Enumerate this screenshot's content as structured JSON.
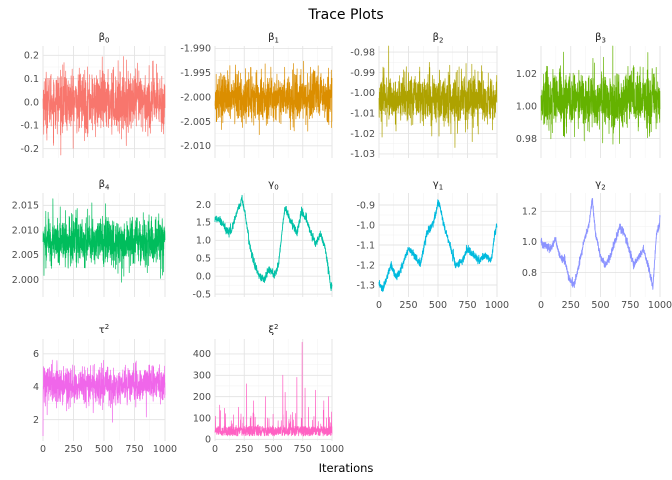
{
  "figure": {
    "title": "Trace Plots",
    "xlabel": "Iterations"
  },
  "chart_data": [
    {
      "type": "line",
      "param": "b0",
      "strip": {
        "base": "β",
        "sub": "0"
      },
      "color": "#F8766D",
      "xlim": [
        0,
        1000
      ],
      "ylim": [
        -0.24,
        0.24
      ],
      "yticks": [
        "0.2",
        "0.1",
        "0.0",
        "-0.1",
        "-0.2"
      ],
      "ytick_values": [
        0.2,
        0.1,
        0.0,
        -0.1,
        -0.2
      ],
      "xticks": [],
      "xtick_values": [
        0,
        250,
        500,
        750,
        1000
      ],
      "approx_mean": 0.0,
      "approx_sd": 0.065,
      "n": 1000
    },
    {
      "type": "line",
      "param": "b1",
      "strip": {
        "base": "β",
        "sub": "1"
      },
      "color": "#DB8E00",
      "xlim": [
        0,
        1000
      ],
      "ylim": [
        -2.0125,
        -1.9895
      ],
      "yticks": [
        "-1.990",
        "-1.995",
        "-2.000",
        "-2.005",
        "-2.010"
      ],
      "ytick_values": [
        -1.99,
        -1.995,
        -2.0,
        -2.005,
        -2.01
      ],
      "xticks": [],
      "xtick_values": [
        0,
        250,
        500,
        750,
        1000
      ],
      "approx_mean": -2.0,
      "approx_sd": 0.0025,
      "n": 1000
    },
    {
      "type": "line",
      "param": "b2",
      "strip": {
        "base": "β",
        "sub": "2"
      },
      "color": "#AEA200",
      "xlim": [
        0,
        1000
      ],
      "ylim": [
        -1.032,
        -0.977
      ],
      "yticks": [
        "-0.98",
        "-0.99",
        "-1.00",
        "-1.01",
        "-1.02",
        "-1.03"
      ],
      "ytick_values": [
        -0.98,
        -0.99,
        -1.0,
        -1.01,
        -1.02,
        -1.03
      ],
      "xticks": [],
      "xtick_values": [
        0,
        250,
        500,
        750,
        1000
      ],
      "approx_mean": -1.003,
      "approx_sd": 0.006,
      "n": 1000
    },
    {
      "type": "line",
      "param": "b3",
      "strip": {
        "base": "β",
        "sub": "3"
      },
      "color": "#64B200",
      "xlim": [
        0,
        1000
      ],
      "ylim": [
        0.968,
        1.037
      ],
      "yticks": [
        "1.02",
        "1.00",
        "0.98"
      ],
      "ytick_values": [
        1.02,
        1.0,
        0.98
      ],
      "xticks": [],
      "xtick_values": [
        0,
        250,
        500,
        750,
        1000
      ],
      "approx_mean": 1.003,
      "approx_sd": 0.009,
      "n": 1000
    },
    {
      "type": "line",
      "param": "b4",
      "strip": {
        "base": "β",
        "sub": "4"
      },
      "color": "#00BD5C",
      "xlim": [
        0,
        1000
      ],
      "ylim": [
        1.9965,
        2.0175
      ],
      "yticks": [
        "2.015",
        "2.010",
        "2.005",
        "2.000"
      ],
      "ytick_values": [
        2.015,
        2.01,
        2.005,
        2.0
      ],
      "xticks": [],
      "xtick_values": [
        0,
        250,
        500,
        750,
        1000
      ],
      "approx_mean": 2.0078,
      "approx_sd": 0.0025,
      "n": 1000
    },
    {
      "type": "line",
      "param": "g0",
      "strip": {
        "base": "γ",
        "sub": "0"
      },
      "color": "#00C1A7",
      "xlim": [
        0,
        1000
      ],
      "ylim": [
        -0.58,
        2.32
      ],
      "yticks": [
        "2.0",
        "1.5",
        "1.0",
        "0.5",
        "0.0",
        "-0.5"
      ],
      "ytick_values": [
        2.0,
        1.5,
        1.0,
        0.5,
        0.0,
        -0.5
      ],
      "xticks": [],
      "xtick_values": [
        0,
        250,
        500,
        750,
        1000
      ],
      "trend_x": [
        0,
        50,
        100,
        140,
        170,
        200,
        230,
        260,
        300,
        340,
        380,
        420,
        460,
        500,
        520,
        540,
        560,
        580,
        600,
        640,
        700,
        740,
        780,
        820,
        860,
        900,
        940,
        970,
        990,
        1000
      ],
      "trend_y": [
        1.6,
        1.55,
        1.3,
        1.25,
        1.6,
        1.9,
        2.15,
        1.7,
        0.8,
        0.3,
        0.0,
        -0.1,
        0.2,
        0.05,
        0.1,
        0.3,
        0.8,
        1.5,
        1.9,
        1.6,
        1.2,
        1.8,
        1.6,
        1.2,
        0.9,
        1.2,
        0.8,
        0.2,
        -0.35,
        -0.2
      ],
      "n": 1000
    },
    {
      "type": "line",
      "param": "g1",
      "strip": {
        "base": "γ",
        "sub": "1"
      },
      "color": "#00BADE",
      "xlim": [
        0,
        1000
      ],
      "ylim": [
        -1.36,
        -0.84
      ],
      "yticks": [
        "-0.9",
        "-1.0",
        "-1.1",
        "-1.2",
        "-1.3"
      ],
      "ytick_values": [
        -0.9,
        -1.0,
        -1.1,
        -1.2,
        -1.3
      ],
      "xticks": [
        "0",
        "250",
        "500",
        "750",
        "1000"
      ],
      "xtick_values": [
        0,
        250,
        500,
        750,
        1000
      ],
      "trend_x": [
        0,
        30,
        60,
        100,
        150,
        200,
        250,
        300,
        350,
        400,
        450,
        480,
        500,
        520,
        550,
        600,
        650,
        700,
        750,
        800,
        850,
        900,
        950,
        980,
        1000
      ],
      "trend_y": [
        -1.3,
        -1.32,
        -1.28,
        -1.2,
        -1.26,
        -1.2,
        -1.12,
        -1.15,
        -1.2,
        -1.05,
        -1.0,
        -0.95,
        -0.88,
        -0.92,
        -1.0,
        -1.1,
        -1.2,
        -1.18,
        -1.12,
        -1.15,
        -1.18,
        -1.15,
        -1.18,
        -1.05,
        -1.0
      ],
      "n": 1000
    },
    {
      "type": "line",
      "param": "g2",
      "strip": {
        "base": "γ",
        "sub": "2"
      },
      "color": "#8B93FF",
      "xlim": [
        0,
        1000
      ],
      "ylim": [
        0.64,
        1.32
      ],
      "yticks": [
        "1.2",
        "1.0",
        "0.8"
      ],
      "ytick_values": [
        1.2,
        1.0,
        0.8
      ],
      "xticks": [
        "0",
        "250",
        "500",
        "750",
        "1000"
      ],
      "xtick_values": [
        0,
        250,
        500,
        750,
        1000
      ],
      "trend_x": [
        0,
        40,
        80,
        120,
        160,
        200,
        240,
        280,
        320,
        360,
        400,
        430,
        460,
        500,
        540,
        580,
        620,
        660,
        700,
        740,
        780,
        820,
        860,
        900,
        940,
        970,
        990,
        1000
      ],
      "trend_y": [
        1.0,
        0.97,
        0.95,
        1.02,
        0.9,
        0.88,
        0.75,
        0.72,
        0.85,
        1.0,
        1.1,
        1.28,
        1.05,
        0.9,
        0.85,
        0.9,
        1.0,
        1.1,
        1.05,
        0.95,
        0.85,
        0.9,
        0.95,
        0.85,
        0.7,
        1.05,
        1.1,
        1.15
      ],
      "n": 1000
    },
    {
      "type": "line",
      "param": "tau2",
      "strip": {
        "base": "τ",
        "sup": "2"
      },
      "color": "#F066EA",
      "xlim": [
        0,
        1000
      ],
      "ylim": [
        0.7,
        6.9
      ],
      "yticks": [
        "6",
        "4",
        "2"
      ],
      "ytick_values": [
        6,
        4,
        2
      ],
      "xticks": [
        "0",
        "250",
        "500",
        "750",
        "1000"
      ],
      "xtick_values": [
        0,
        250,
        500,
        750,
        1000
      ],
      "first_value": 1.0,
      "approx_mean": 4.1,
      "approx_sd": 0.55,
      "n": 1000
    },
    {
      "type": "line",
      "param": "xi2",
      "strip": {
        "base": "ξ",
        "sup": "2"
      },
      "color": "#FF61C3",
      "xlim": [
        0,
        1000
      ],
      "ylim": [
        -8,
        470
      ],
      "yticks": [
        "400",
        "300",
        "200",
        "100",
        "0"
      ],
      "ytick_values": [
        400,
        300,
        200,
        100,
        0
      ],
      "xticks": [
        "0",
        "250",
        "500",
        "750",
        "1000"
      ],
      "xtick_values": [
        0,
        250,
        500,
        750,
        1000
      ],
      "approx_mean": 45,
      "spikes": [
        [
          40,
          160
        ],
        [
          90,
          120
        ],
        [
          200,
          150
        ],
        [
          270,
          260
        ],
        [
          330,
          180
        ],
        [
          430,
          200
        ],
        [
          580,
          300
        ],
        [
          600,
          220
        ],
        [
          700,
          290
        ],
        [
          745,
          455
        ],
        [
          770,
          240
        ],
        [
          800,
          150
        ],
        [
          860,
          230
        ],
        [
          930,
          180
        ],
        [
          970,
          200
        ]
      ],
      "n": 1000
    }
  ]
}
